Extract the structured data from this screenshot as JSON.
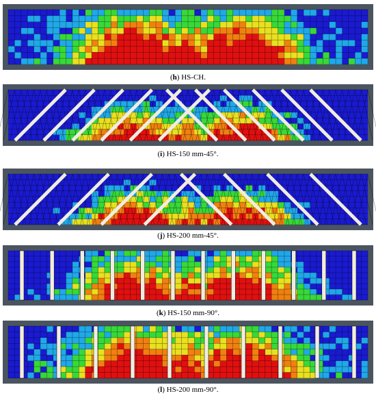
{
  "panels": [
    {
      "id": "h",
      "label": "h",
      "caption": " HS-CH.",
      "pattern": "none",
      "top": 6,
      "height": 96,
      "caption_top": 107
    },
    {
      "id": "i",
      "label": "i",
      "caption": " HS-150 mm-45°.",
      "pattern": "diag150",
      "top": 123,
      "height": 90,
      "caption_top": 219
    },
    {
      "id": "j",
      "label": "j",
      "caption": " HS-200 mm-45°.",
      "pattern": "diag200",
      "top": 246,
      "height": 90,
      "caption_top": 338
    },
    {
      "id": "k",
      "label": "k",
      "caption": " HS-150 mm-90°.",
      "pattern": "vert150",
      "top": 358,
      "height": 88,
      "caption_top": 451
    },
    {
      "id": "l",
      "label": "l",
      "caption": " HS-200 mm-90°.",
      "pattern": "vert200",
      "top": 468,
      "height": 92,
      "caption_top": 563
    }
  ],
  "colors": {
    "frame": "#4a5560",
    "blue": "#1a1ad0",
    "cyan": "#20a8e8",
    "green": "#38d838",
    "yellow": "#e8e020",
    "orange": "#f08010",
    "red": "#e01010",
    "reinforcement": "#f0ece0"
  }
}
